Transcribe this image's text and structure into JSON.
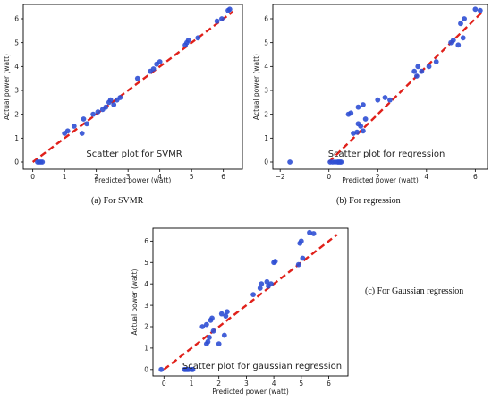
{
  "chart_data": [
    {
      "id": "svmr",
      "type": "scatter",
      "caption": "(a) For SVMR",
      "inplot_title": "Scatter plot for SVMR",
      "xlabel": "Predicted power (watt)",
      "ylabel": "Actual power (watt)",
      "xlim": [
        -0.3,
        6.6
      ],
      "ylim": [
        -0.3,
        6.6
      ],
      "xticks": [
        0,
        1,
        2,
        3,
        4,
        5,
        6
      ],
      "yticks": [
        0,
        1,
        2,
        3,
        4,
        5,
        6
      ],
      "grid": false,
      "point_color": "#2f4fd4",
      "fit_line_color": "#e0201a",
      "fit_line": [
        [
          0,
          0
        ],
        [
          6.3,
          6.3
        ]
      ],
      "points": [
        [
          0.15,
          0.0
        ],
        [
          0.2,
          0.0
        ],
        [
          0.25,
          0.0
        ],
        [
          0.3,
          0.0
        ],
        [
          1.0,
          1.2
        ],
        [
          1.1,
          1.3
        ],
        [
          1.3,
          1.5
        ],
        [
          1.55,
          1.2
        ],
        [
          1.7,
          1.6
        ],
        [
          1.6,
          1.8
        ],
        [
          1.9,
          2.0
        ],
        [
          2.05,
          2.1
        ],
        [
          2.2,
          2.2
        ],
        [
          2.3,
          2.3
        ],
        [
          2.4,
          2.5
        ],
        [
          2.45,
          2.6
        ],
        [
          2.55,
          2.4
        ],
        [
          2.65,
          2.6
        ],
        [
          2.75,
          2.7
        ],
        [
          3.3,
          3.5
        ],
        [
          3.7,
          3.8
        ],
        [
          3.8,
          3.9
        ],
        [
          3.9,
          4.1
        ],
        [
          4.0,
          4.2
        ],
        [
          4.8,
          4.9
        ],
        [
          4.85,
          5.0
        ],
        [
          4.9,
          5.1
        ],
        [
          5.2,
          5.2
        ],
        [
          5.8,
          5.9
        ],
        [
          5.95,
          6.0
        ],
        [
          6.15,
          6.35
        ],
        [
          6.2,
          6.4
        ]
      ]
    },
    {
      "id": "regression",
      "type": "scatter",
      "caption": "(b) For regression",
      "inplot_title": "Scatter plot for regression",
      "xlabel": "Predicted power (watt)",
      "ylabel": "Actual power (watt)",
      "xlim": [
        -2.3,
        6.5
      ],
      "ylim": [
        -0.3,
        6.6
      ],
      "xticks": [
        -2,
        0,
        2,
        4,
        6
      ],
      "yticks": [
        0,
        1,
        2,
        3,
        4,
        5,
        6
      ],
      "grid": false,
      "point_color": "#2f4fd4",
      "fit_line_color": "#e0201a",
      "fit_line": [
        [
          0,
          0
        ],
        [
          6.3,
          6.3
        ]
      ],
      "points": [
        [
          -1.6,
          0.0
        ],
        [
          0.05,
          0.0
        ],
        [
          0.15,
          0.0
        ],
        [
          0.25,
          0.0
        ],
        [
          0.35,
          0.0
        ],
        [
          0.4,
          0.0
        ],
        [
          0.45,
          0.0
        ],
        [
          0.5,
          0.0
        ],
        [
          0.8,
          2.0
        ],
        [
          0.9,
          2.05
        ],
        [
          1.0,
          1.2
        ],
        [
          1.15,
          1.25
        ],
        [
          1.2,
          1.6
        ],
        [
          1.3,
          1.5
        ],
        [
          1.4,
          1.3
        ],
        [
          1.5,
          1.8
        ],
        [
          1.2,
          2.3
        ],
        [
          1.4,
          2.4
        ],
        [
          2.0,
          2.6
        ],
        [
          2.3,
          2.7
        ],
        [
          2.5,
          2.6
        ],
        [
          3.5,
          3.8
        ],
        [
          3.6,
          3.6
        ],
        [
          3.65,
          4.0
        ],
        [
          3.8,
          3.8
        ],
        [
          4.1,
          4.0
        ],
        [
          4.4,
          4.2
        ],
        [
          5.0,
          5.0
        ],
        [
          5.1,
          5.1
        ],
        [
          5.3,
          4.9
        ],
        [
          5.5,
          5.2
        ],
        [
          5.4,
          5.8
        ],
        [
          5.55,
          6.0
        ],
        [
          6.0,
          6.4
        ],
        [
          6.2,
          6.35
        ]
      ]
    },
    {
      "id": "gaussian",
      "type": "scatter",
      "caption": "(c) For Gaussian regression",
      "inplot_title": "Scatter plot for gaussian regression",
      "xlabel": "Predicted power (watt)",
      "ylabel": "Actual power (watt)",
      "xlim": [
        -0.4,
        6.7
      ],
      "ylim": [
        -0.3,
        6.6
      ],
      "xticks": [
        0,
        1,
        2,
        3,
        4,
        5,
        6
      ],
      "yticks": [
        0,
        1,
        2,
        3,
        4,
        5,
        6
      ],
      "grid": false,
      "point_color": "#2f4fd4",
      "fit_line_color": "#e0201a",
      "fit_line": [
        [
          0,
          0
        ],
        [
          6.3,
          6.3
        ]
      ],
      "points": [
        [
          -0.1,
          0.0
        ],
        [
          0.75,
          0.0
        ],
        [
          0.8,
          0.0
        ],
        [
          0.85,
          0.0
        ],
        [
          0.9,
          0.0
        ],
        [
          1.0,
          0.0
        ],
        [
          1.05,
          0.0
        ],
        [
          1.4,
          2.0
        ],
        [
          1.55,
          2.1
        ],
        [
          1.55,
          1.2
        ],
        [
          1.6,
          1.3
        ],
        [
          1.65,
          1.5
        ],
        [
          1.7,
          2.3
        ],
        [
          1.75,
          2.4
        ],
        [
          1.8,
          1.8
        ],
        [
          2.0,
          1.2
        ],
        [
          2.1,
          2.6
        ],
        [
          2.25,
          2.5
        ],
        [
          2.3,
          2.7
        ],
        [
          2.2,
          1.6
        ],
        [
          3.25,
          3.5
        ],
        [
          3.5,
          3.8
        ],
        [
          3.55,
          4.0
        ],
        [
          3.75,
          4.1
        ],
        [
          3.8,
          3.9
        ],
        [
          3.9,
          4.0
        ],
        [
          4.0,
          5.0
        ],
        [
          4.05,
          5.05
        ],
        [
          4.9,
          4.9
        ],
        [
          4.95,
          5.9
        ],
        [
          5.0,
          6.0
        ],
        [
          5.05,
          5.2
        ],
        [
          5.3,
          6.4
        ],
        [
          5.45,
          6.35
        ]
      ]
    }
  ]
}
